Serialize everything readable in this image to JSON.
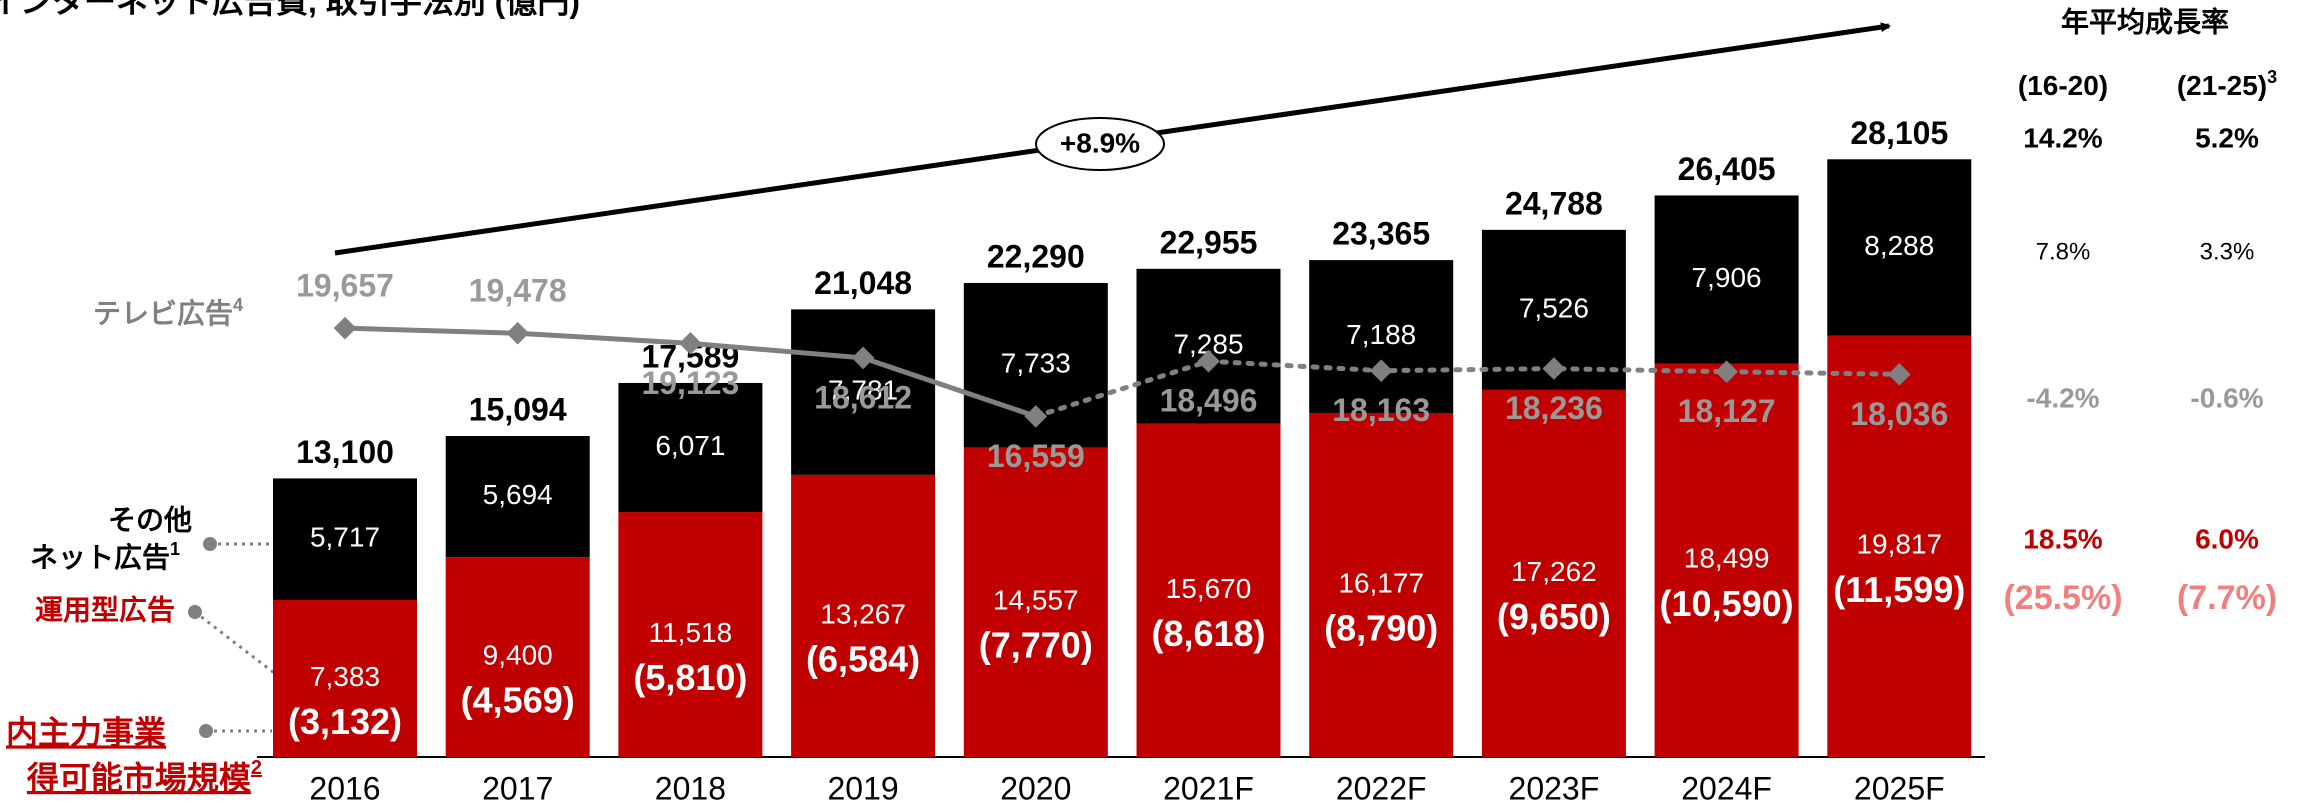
{
  "chart_data": {
    "type": "bar",
    "stacked": true,
    "title": "インターネット広告費, 取引手法別 (億円)",
    "categories": [
      "2016",
      "2017",
      "2018",
      "2019",
      "2020",
      "2021F",
      "2022F",
      "2023F",
      "2024F",
      "2025F"
    ],
    "ylim": [
      0,
      30000
    ],
    "y2lim": [
      4600,
      27000
    ],
    "series": [
      {
        "name": "運用型広告",
        "color": "#c00000",
        "values": [
          7383,
          9400,
          11518,
          13267,
          14557,
          15670,
          16177,
          17262,
          18499,
          19817
        ],
        "value_labels": [
          "7,383",
          "9,400",
          "11,518",
          "13,267",
          "14,557",
          "15,670",
          "16,177",
          "17,262",
          "18,499",
          "19,817"
        ]
      },
      {
        "name": "その他ネット広告",
        "color": "#000000",
        "values": [
          5717,
          5694,
          6071,
          7781,
          7733,
          7285,
          7188,
          7526,
          7906,
          8288
        ],
        "value_labels": [
          "5,717",
          "5,694",
          "6,071",
          "7,781",
          "7,733",
          "7,285",
          "7,188",
          "7,526",
          "7,906",
          "8,288"
        ]
      },
      {
        "name": "テレビ広告",
        "type": "line",
        "axis": "y2",
        "color": "#808080",
        "dashed_after": "2020",
        "values": [
          19657,
          19478,
          19123,
          18612,
          16559,
          18496,
          18163,
          18236,
          18127,
          18036
        ],
        "value_labels": [
          "19,657",
          "19,478",
          "19,123",
          "18,612",
          "16,559",
          "18,496",
          "18,163",
          "18,236",
          "18,127",
          "18,036"
        ]
      }
    ],
    "totals": [
      13100,
      15094,
      17589,
      21048,
      22290,
      22955,
      23365,
      24788,
      26405,
      28105
    ],
    "total_labels": [
      "13,100",
      "15,094",
      "17,589",
      "21,048",
      "22,290",
      "22,955",
      "23,365",
      "24,788",
      "26,405",
      "28,105"
    ],
    "subset": {
      "name": "国内主力事業獲得可能市場規模",
      "color": "#ffffff",
      "values": [
        3132,
        4569,
        5810,
        6584,
        7770,
        8618,
        8790,
        9650,
        10590,
        11599
      ],
      "value_labels": [
        "(3,132)",
        "(4,569)",
        "(5,810)",
        "(6,584)",
        "(7,770)",
        "(8,618)",
        "(8,790)",
        "(9,650)",
        "(10,590)",
        "(11,599)"
      ]
    },
    "labels": {
      "tv": {
        "text": "テレビ広告",
        "note": "4"
      },
      "other": {
        "line1": "その他",
        "line2": "ネット広告",
        "note": "1"
      },
      "programmatic": {
        "text": "運用型広告"
      },
      "subset": {
        "line1": "内主力事業",
        "line2": "得可能市場規模",
        "note": "2"
      }
    },
    "annotation": "+8.9%",
    "cagr": {
      "title": "年平均成長率",
      "columns": [
        {
          "text": "(16-20)"
        },
        {
          "text": "(21-25)",
          "note": "3"
        }
      ],
      "rows": [
        {
          "cells": [
            "14.2%",
            "5.2%"
          ],
          "color": "#000000"
        },
        {
          "cells": [
            "7.8%",
            "3.3%"
          ],
          "color": "#000000"
        },
        {
          "cells": [
            "-4.2%",
            "-0.6%"
          ],
          "color": "#999999"
        },
        {
          "cells": [
            "18.5%",
            "6.0%"
          ],
          "color": "#c00000"
        },
        {
          "cells": [
            "(25.5%)",
            "(7.7%)"
          ],
          "color": "#f08080"
        }
      ]
    }
  }
}
